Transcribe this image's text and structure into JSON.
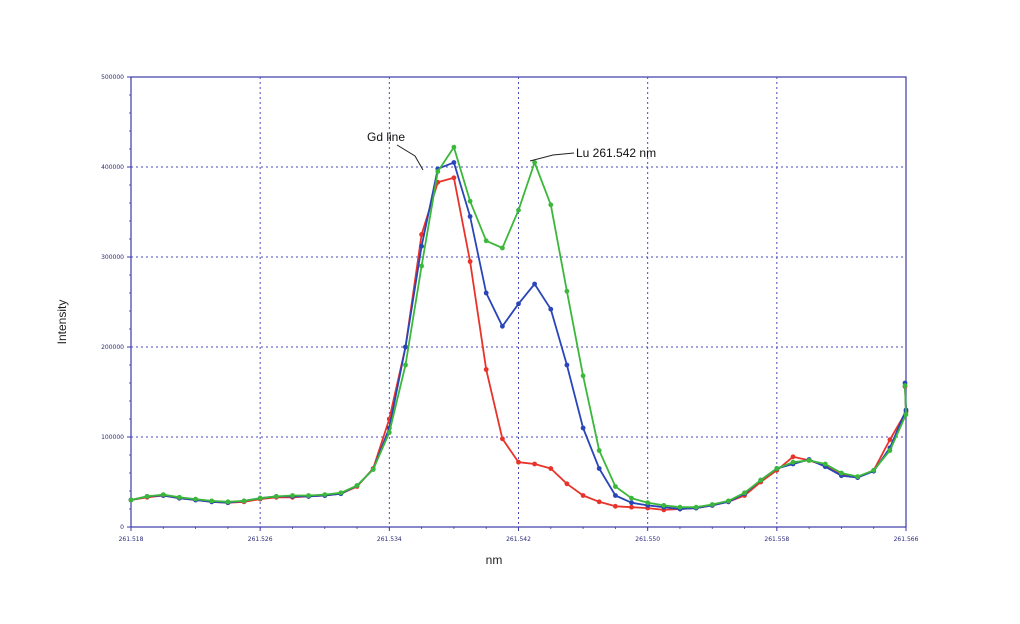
{
  "chart_data": {
    "type": "line",
    "title": "",
    "xlabel": "nm",
    "ylabel": "Intensity",
    "xlim": [
      261.518,
      261.566
    ],
    "ylim": [
      0,
      500000
    ],
    "x_ticks": [
      261.518,
      261.526,
      261.534,
      261.542,
      261.55,
      261.558,
      261.566
    ],
    "x_tick_labels": [
      "261.518",
      "261.526",
      "261.534",
      "261.542",
      "261.550",
      "261.558",
      "261.566"
    ],
    "y_ticks": [
      0,
      100000,
      200000,
      300000,
      400000,
      500000
    ],
    "y_tick_labels": [
      "0",
      "100000",
      "200000",
      "300000",
      "400000",
      "500000"
    ],
    "grid": true,
    "x": [
      261.518,
      261.519,
      261.52,
      261.521,
      261.522,
      261.523,
      261.524,
      261.525,
      261.526,
      261.527,
      261.528,
      261.529,
      261.53,
      261.531,
      261.532,
      261.533,
      261.534,
      261.535,
      261.536,
      261.537,
      261.538,
      261.539,
      261.54,
      261.541,
      261.542,
      261.543,
      261.544,
      261.545,
      261.546,
      261.547,
      261.548,
      261.549,
      261.55,
      261.551,
      261.552,
      261.553,
      261.554,
      261.555,
      261.556,
      261.557,
      261.558,
      261.559,
      261.56,
      261.561,
      261.562,
      261.563,
      261.564,
      261.565,
      261.566
    ],
    "series": [
      {
        "color": "#e8332a",
        "values": [
          30000,
          33000,
          35000,
          32000,
          30000,
          28000,
          27000,
          28000,
          31000,
          33000,
          33000,
          34000,
          35000,
          37000,
          45000,
          65000,
          120000,
          200000,
          325000,
          383000,
          388000,
          295000,
          175000,
          98000,
          72000,
          70000,
          65000,
          48000,
          35000,
          28000,
          23000,
          22000,
          21000,
          19000,
          20000,
          21000,
          24000,
          28000,
          35000,
          50000,
          63000,
          78000,
          74000,
          68000,
          58000,
          55000,
          63000,
          97000,
          128000
        ]
      },
      {
        "color": "#2a45b8",
        "values": [
          30000,
          34000,
          35000,
          32000,
          30000,
          28000,
          27000,
          29000,
          32000,
          34000,
          34000,
          34000,
          35000,
          37000,
          46000,
          64000,
          110000,
          200000,
          312000,
          398000,
          405000,
          345000,
          260000,
          223000,
          248000,
          270000,
          242000,
          180000,
          110000,
          65000,
          35000,
          27000,
          24000,
          22000,
          20000,
          21000,
          24000,
          28000,
          37000,
          52000,
          65000,
          70000,
          75000,
          67000,
          57000,
          55000,
          62000,
          88000,
          130000
        ]
      },
      {
        "color": "#3bb83b",
        "values": [
          30000,
          34000,
          36000,
          33000,
          31000,
          29000,
          28000,
          29000,
          32000,
          34000,
          35000,
          35000,
          36000,
          38000,
          46000,
          64000,
          105000,
          180000,
          290000,
          395000,
          422000,
          362000,
          318000,
          310000,
          352000,
          405000,
          358000,
          262000,
          168000,
          85000,
          45000,
          32000,
          27000,
          24000,
          22000,
          22000,
          25000,
          29000,
          38000,
          52000,
          65000,
          72000,
          74000,
          70000,
          60000,
          56000,
          63000,
          85000,
          125000
        ]
      }
    ],
    "end_values": [
      156000,
      160000,
      157000
    ],
    "annotations": [
      {
        "text": "Gd line"
      },
      {
        "text": "Lu 261.542 nm"
      }
    ]
  }
}
